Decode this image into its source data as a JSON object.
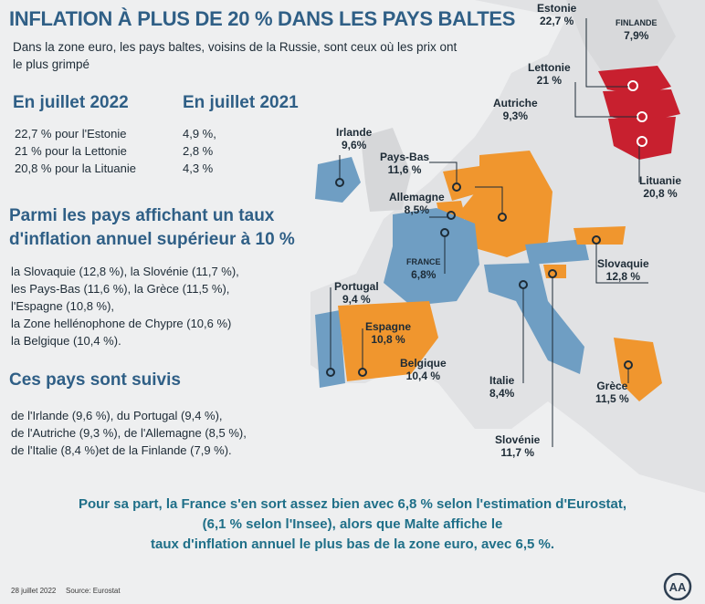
{
  "headline": "INFLATION À PLUS DE 20 % DANS LES PAYS BALTES",
  "subtitle": "Dans la zone euro, les pays baltes, voisins de la Russie, sont ceux où les prix ont le plus grimpé",
  "col_2022": "En juillet 2022",
  "col_2021": "En juillet 2021",
  "rows": [
    {
      "v2022": "22,7 % pour l'Estonie",
      "v2021": "4,9 %,"
    },
    {
      "v2022": "21 % pour la Lettonie",
      "v2021": "2,8 %"
    },
    {
      "v2022": "20,8 % pour la Lituanie",
      "v2021": "4,3 %"
    }
  ],
  "section1_title": "Parmi les pays affichant un taux d'inflation annuel supérieur à 10 %",
  "section1_lines": [
    "la Slovaquie (12,8 %), la Slovénie (11,7 %),",
    "les Pays-Bas (11,6 %), la Grèce (11,5 %),",
    "l'Espagne (10,8 %),",
    "la Zone hellénophone de Chypre (10,6 %)",
    "la Belgique (10,4 %)."
  ],
  "section2_title": "Ces pays sont suivis",
  "section2_lines": [
    "de l'Irlande (9,6 %), du Portugal (9,4 %),",
    "de l'Autriche (9,3 %), de l'Allemagne (8,5 %),",
    "de l'Italie (8,4 %)et de la Finlande (7,9 %)."
  ],
  "conclusion": [
    "Pour sa part, la France s'en sort assez bien avec 6,8 % selon l'estimation d'Eurostat,",
    "(6,1 % selon l'Insee), alors que Malte affiche le",
    "taux d'inflation annuel le plus bas de la zone euro, avec 6,5 %."
  ],
  "date": "28 juillet 2022",
  "source": "Source: Eurostat",
  "logo_text": "AA",
  "colors": {
    "baltic": "#c8202f",
    "high": "#f0962e",
    "medium": "#6f9ec3",
    "land": "#e2e3e5",
    "sea": "#f2f3f4",
    "title": "#2f5f86"
  },
  "countries": [
    {
      "key": "estonie",
      "name": "Estonie",
      "value": "22,7 %"
    },
    {
      "key": "finlande",
      "name": "FINLANDE",
      "value": "7,9%"
    },
    {
      "key": "lettonie",
      "name": "Lettonie",
      "value": "21 %"
    },
    {
      "key": "lituanie",
      "name": "Lituanie",
      "value": "20,8 %"
    },
    {
      "key": "autriche",
      "name": "Autriche",
      "value": "9,3%"
    },
    {
      "key": "irlande",
      "name": "Irlande",
      "value": "9,6%"
    },
    {
      "key": "paysbas",
      "name": "Pays-Bas",
      "value": "11,6 %"
    },
    {
      "key": "allemagne",
      "name": "Allemagne",
      "value": "8,5%"
    },
    {
      "key": "france",
      "name": "FRANCE",
      "value": "6,8%"
    },
    {
      "key": "slovaquie",
      "name": "Slovaquie",
      "value": "12,8 %"
    },
    {
      "key": "portugal",
      "name": "Portugal",
      "value": "9,4 %"
    },
    {
      "key": "espagne",
      "name": "Espagne",
      "value": "10,8 %"
    },
    {
      "key": "belgique",
      "name": "Belgique",
      "value": "10,4 %"
    },
    {
      "key": "italie",
      "name": "Italie",
      "value": "8,4%"
    },
    {
      "key": "grece",
      "name": "Grèce",
      "value": "11,5 %"
    },
    {
      "key": "slovenie",
      "name": "Slovénie",
      "value": "11,7 %"
    }
  ]
}
